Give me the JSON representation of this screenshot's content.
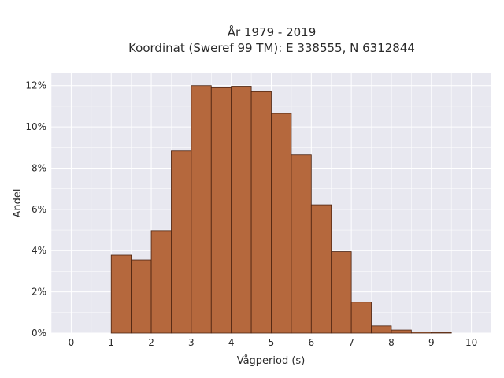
{
  "chart_data": {
    "type": "bar",
    "title_line1": "År 1979 - 2019",
    "title_line2": "Koordinat (Sweref 99 TM): E 338555, N 6312844",
    "xlabel": "Vågperiod (s)",
    "ylabel": "Andel",
    "xlim": [
      -0.5,
      10.5
    ],
    "ylim": [
      0,
      12.6
    ],
    "xticks": [
      0,
      1,
      2,
      3,
      4,
      5,
      6,
      7,
      8,
      9,
      10
    ],
    "yticks": [
      0,
      2,
      4,
      6,
      8,
      10,
      12
    ],
    "ytick_labels": [
      "0%",
      "2%",
      "4%",
      "6%",
      "8%",
      "10%",
      "12%"
    ],
    "bin_width": 0.5,
    "bin_starts": [
      1.0,
      1.5,
      2.0,
      2.5,
      3.0,
      3.5,
      4.0,
      4.5,
      5.0,
      5.5,
      6.0,
      6.5,
      7.0,
      7.5,
      8.0,
      8.5,
      9.0
    ],
    "values": [
      3.78,
      3.55,
      4.97,
      8.83,
      12.0,
      11.9,
      11.97,
      11.71,
      10.65,
      8.64,
      6.22,
      3.95,
      1.5,
      0.35,
      0.15,
      0.05,
      0.04
    ],
    "grid": true,
    "colors": {
      "bar": "#b5683d",
      "bar_edge": "#4a2210",
      "plot_bg": "#e8e8f0",
      "grid": "#ffffff"
    }
  }
}
